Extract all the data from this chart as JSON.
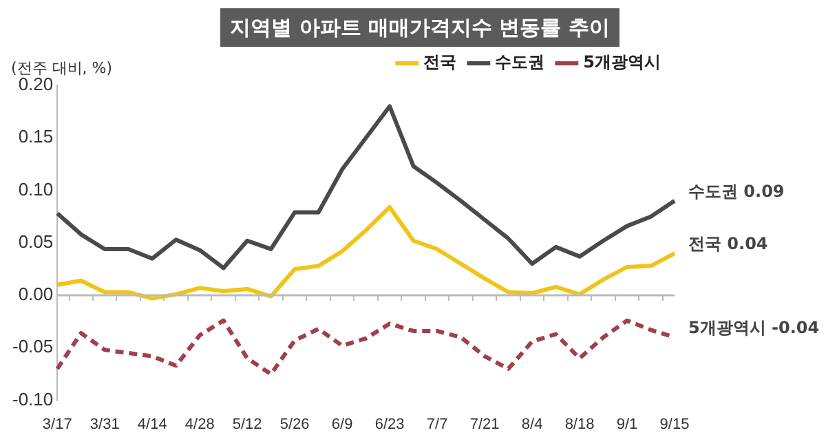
{
  "chart_data": {
    "type": "line",
    "title": "지역별 아파트 매매가격지수 변동률 추이",
    "ylabel": "(전주 대비, %)",
    "categories": [
      "3/17",
      null,
      "3/31",
      null,
      "4/14",
      null,
      "4/28",
      null,
      "5/12",
      null,
      "5/26",
      null,
      "6/9",
      null,
      "6/23",
      null,
      "7/7",
      null,
      "7/21",
      null,
      "8/4",
      null,
      "8/18",
      null,
      "9/1",
      null,
      "9/15"
    ],
    "series": [
      {
        "name": "전국",
        "color": "#f0c419",
        "line_style": "solid",
        "values": [
          0.01,
          0.014,
          0.003,
          0.003,
          -0.003,
          0.001,
          0.007,
          0.004,
          0.006,
          -0.001,
          0.025,
          0.028,
          0.042,
          0.062,
          0.084,
          0.052,
          0.044,
          0.03,
          0.016,
          0.003,
          0.002,
          0.008,
          0.001,
          0.015,
          0.027,
          0.028,
          0.04
        ]
      },
      {
        "name": "수도권",
        "color": "#4a4a4a",
        "line_style": "solid",
        "values": [
          0.078,
          0.058,
          0.044,
          0.044,
          0.035,
          0.053,
          0.043,
          0.026,
          0.052,
          0.044,
          0.079,
          0.079,
          0.12,
          0.15,
          0.18,
          0.123,
          0.107,
          0.09,
          0.072,
          0.054,
          0.03,
          0.046,
          0.037,
          0.052,
          0.066,
          0.075,
          0.09
        ]
      },
      {
        "name": "5개광역시",
        "color": "#a0404a",
        "line_style": "dashed",
        "values": [
          -0.07,
          -0.036,
          -0.052,
          -0.055,
          -0.058,
          -0.067,
          -0.038,
          -0.024,
          -0.06,
          -0.075,
          -0.043,
          -0.032,
          -0.048,
          -0.041,
          -0.027,
          -0.034,
          -0.034,
          -0.04,
          -0.058,
          -0.07,
          -0.044,
          -0.037,
          -0.06,
          -0.04,
          -0.024,
          -0.033,
          -0.04
        ]
      }
    ],
    "ylim": [
      -0.1,
      0.2
    ],
    "yticks": [
      {
        "value": -0.1,
        "label": "-0.10"
      },
      {
        "value": -0.05,
        "label": "-0.05"
      },
      {
        "value": 0,
        "label": "0.00"
      },
      {
        "value": 0.05,
        "label": "0.05"
      },
      {
        "value": 0.1,
        "label": "0.10"
      },
      {
        "value": 0.15,
        "label": "0.15"
      },
      {
        "value": 0.2,
        "label": "0.20"
      }
    ],
    "annotations": [
      {
        "text": "수도권 0.09",
        "x": "9/15",
        "y": 0.09
      },
      {
        "text": "전국 0.04",
        "x": "9/15",
        "y": 0.04
      },
      {
        "text": "5개광역시 -0.04",
        "x": "9/15",
        "y": -0.04
      }
    ],
    "ref_lines": [
      {
        "axis": "y",
        "value": 0,
        "color": "#bbbbbb",
        "line_style": "solid"
      }
    ],
    "grid": false,
    "legend": "top right",
    "marker": "none"
  }
}
